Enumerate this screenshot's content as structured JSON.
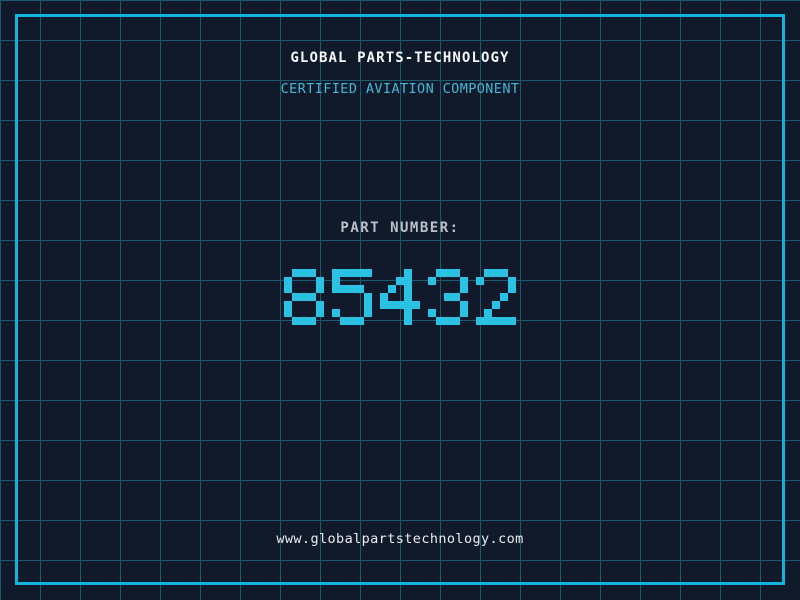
{
  "header": {
    "title": "GLOBAL PARTS-TECHNOLOGY",
    "subtitle": "CERTIFIED AVIATION COMPONENT"
  },
  "part": {
    "label": "PART NUMBER:",
    "number": "85432"
  },
  "footer": {
    "website": "www.globalpartstechnology.com"
  },
  "colors": {
    "background": "#101a2a",
    "grid-line": "#1c5a74",
    "frame": "#10b4dc",
    "title-text": "#f5f7f8",
    "subtitle-text": "#46b6d8",
    "label-text": "#b9c0c9",
    "number-text": "#2ac1e2",
    "website-text": "#e9ecee"
  }
}
